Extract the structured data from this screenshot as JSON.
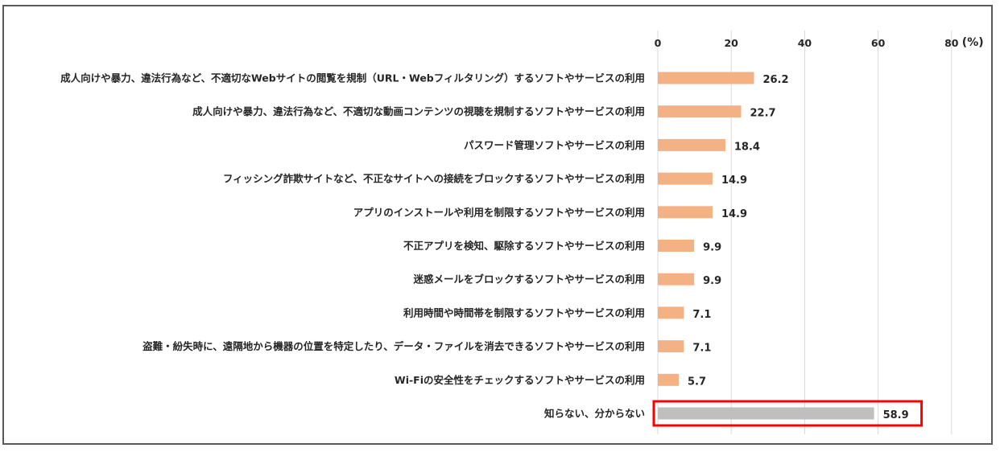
{
  "chart_data": {
    "type": "bar",
    "orientation": "horizontal",
    "unit_label": "(%)",
    "xlim": [
      0,
      80
    ],
    "x_ticks": [
      "0",
      "20",
      "40",
      "60",
      "80"
    ],
    "grid": "vertical",
    "categories": [
      "成人向けや暴力、違法行為など、不適切なWebサイトの閲覧を規制（URL・Webフィルタリング）するソフトやサービスの利用",
      "成人向けや暴力、違法行為など、不適切な動画コンテンツの視聴を規制するソフトやサービスの利用",
      "パスワード管理ソフトやサービスの利用",
      "フィッシング詐欺サイトなど、不正なサイトへの接続をブロックするソフトやサービスの利用",
      "アプリのインストールや利用を制限するソフトやサービスの利用",
      "不正アプリを検知、駆除するソフトやサービスの利用",
      "迷惑メールをブロックするソフトやサービスの利用",
      "利用時間や時間帯を制限するソフトやサービスの利用",
      "盗難・紛失時に、遠隔地から機器の位置を特定したり、データ・ファイルを消去できるソフトやサービスの利用",
      "Wi-Fiの安全性をチェックするソフトやサービスの利用",
      "知らない、分からない"
    ],
    "values": [
      26.2,
      22.7,
      18.4,
      14.9,
      14.9,
      9.9,
      9.9,
      7.1,
      7.1,
      5.7,
      58.9
    ],
    "value_labels": [
      "26.2",
      "22.7",
      "18.4",
      "14.9",
      "14.9",
      "9.9",
      "9.9",
      "7.1",
      "7.1",
      "5.7",
      "58.9"
    ],
    "highlighted_index": 10,
    "colors": {
      "bar": "#F4B183",
      "highlight_bar": "#BFBFBF",
      "highlight_box": "#FF0000",
      "grid": "#D9D9D9",
      "frame": "#595959"
    }
  }
}
